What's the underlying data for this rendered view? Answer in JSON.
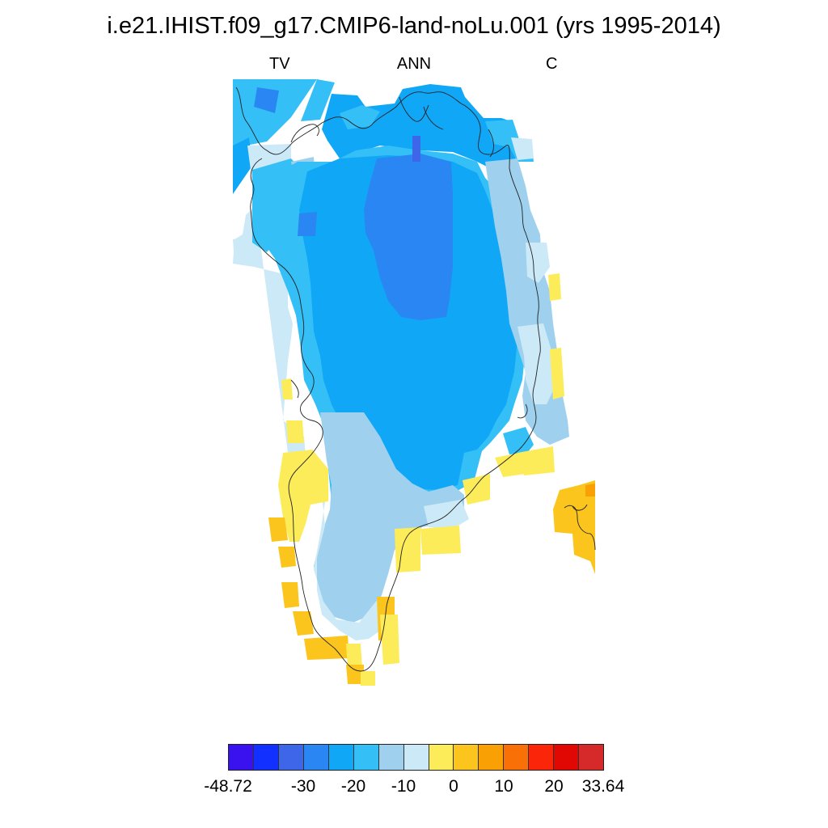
{
  "map": {
    "title": "i.e21.IHIST.f09_g17.CMIP6-land-noLu.001 (yrs 1995-2014)",
    "subtitles": {
      "left": "TV",
      "center": "ANN",
      "right": "C"
    },
    "legend": {
      "colors": [
        "#3a12f0",
        "#1230ff",
        "#3d66e8",
        "#2a86f2",
        "#10a7f7",
        "#34c0f7",
        "#9fd1ee",
        "#cce9f7",
        "#fdec5a",
        "#fbc51d",
        "#f9a004",
        "#f97106",
        "#fb2609",
        "#e10702",
        "#d62a2a"
      ],
      "tick_labels": [
        "-48.72",
        "-30",
        "-20",
        "-10",
        "0",
        "10",
        "20",
        "33.64"
      ]
    }
  }
}
